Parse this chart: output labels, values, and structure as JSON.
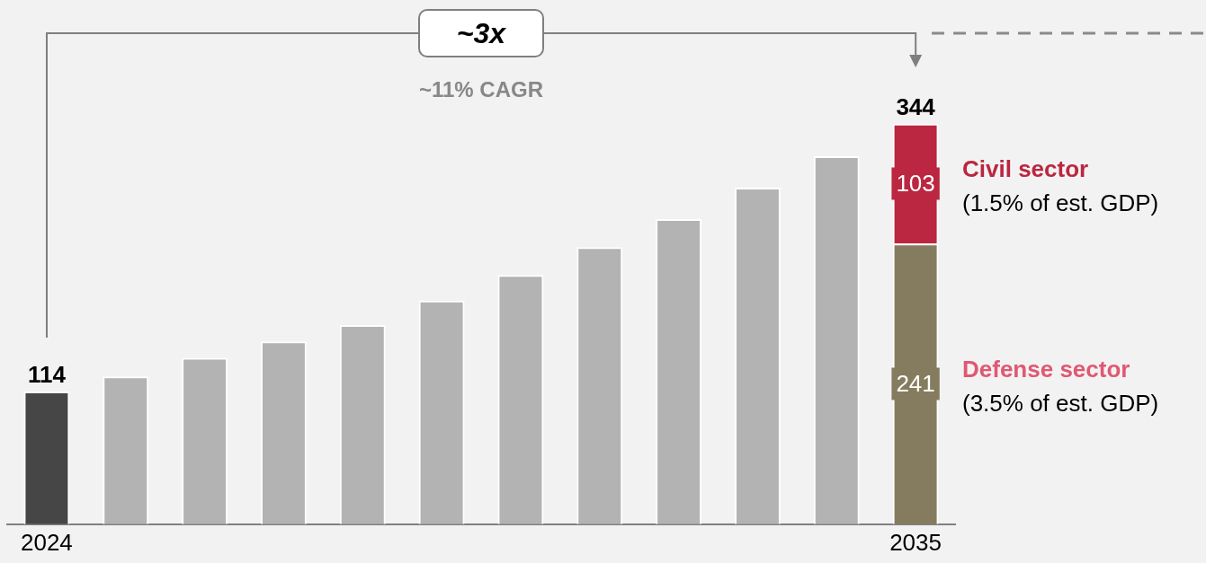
{
  "chart_data": {
    "type": "bar",
    "stacked": true,
    "legend": "right",
    "grid": false,
    "categories": [
      "2024",
      null,
      null,
      null,
      null,
      null,
      null,
      null,
      null,
      null,
      null,
      "2035"
    ],
    "series": [
      {
        "values": [
          114,
          127,
          143,
          157,
          171,
          192,
          214,
          238,
          262,
          289,
          316,
          null
        ],
        "colors": [
          "#464646",
          "#b3b3b3",
          "#b3b3b3",
          "#b3b3b3",
          "#b3b3b3",
          "#b3b3b3",
          "#b3b3b3",
          "#b3b3b3",
          "#b3b3b3",
          "#b3b3b3",
          "#b3b3b3",
          "#b3b3b3"
        ],
        "value_labels": [
          "114",
          null,
          null,
          null,
          null,
          null,
          null,
          null,
          null,
          null,
          null,
          null
        ]
      },
      {
        "name": "Defense sector",
        "color": "#857c5f",
        "values": [
          null,
          null,
          null,
          null,
          null,
          null,
          null,
          null,
          null,
          null,
          null,
          241
        ],
        "value_labels": [
          null,
          null,
          null,
          null,
          null,
          null,
          null,
          null,
          null,
          null,
          null,
          "241"
        ]
      },
      {
        "name": "Civil sector",
        "color": "#bb2640",
        "values": [
          null,
          null,
          null,
          null,
          null,
          null,
          null,
          null,
          null,
          null,
          null,
          103
        ],
        "value_labels": [
          null,
          null,
          null,
          null,
          null,
          null,
          null,
          null,
          null,
          null,
          null,
          "103"
        ]
      }
    ],
    "totals": [
      null,
      null,
      null,
      null,
      null,
      null,
      null,
      null,
      null,
      null,
      null,
      "344"
    ],
    "annotations": [
      "~3x",
      "~11% CAGR",
      "(1.5% of est. GDP)",
      "(3.5% of est. GDP)"
    ]
  }
}
